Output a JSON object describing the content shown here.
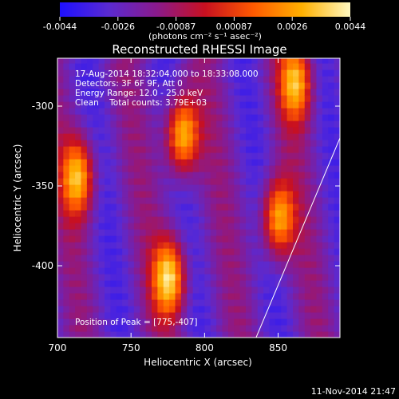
{
  "chart_data": {
    "type": "heatmap",
    "title": "Reconstructed RHESSI Image",
    "xlabel": "Heliocentric X (arcsec)",
    "ylabel": "Heliocentric Y (arcsec)",
    "xlim": [
      700,
      892
    ],
    "ylim": [
      -445,
      -270
    ],
    "x_ticks": [
      700,
      750,
      800,
      850
    ],
    "y_ticks": [
      -300,
      -350,
      -400
    ],
    "colorbar": {
      "ticks": [
        "-0.0044",
        "-0.0026",
        "-0.00087",
        "0.00087",
        "0.0026",
        "0.0044"
      ],
      "min": -0.0044,
      "max": 0.0044,
      "units_label": "(photons cm⁻² s⁻¹ asec⁻²)",
      "colors": [
        "#1e10ff",
        "#5a2ad2",
        "#8a1a8c",
        "#c81020",
        "#ff5a00",
        "#ffb000",
        "#fff8c0"
      ]
    },
    "annotations": [
      "17-Aug-2014 18:32:04.000 to 18:33:08.000",
      "Detectors: 3F 6F 9F, Att 0",
      "Energy Range: 12.0 - 25.0 keV",
      "Clean    Total counts: 3.79E+03"
    ],
    "peak_label": "Position of Peak = [775,-407]",
    "peak": [
      775,
      -407
    ],
    "timestamp": "11-Nov-2014 21:47",
    "bright_blobs": [
      {
        "x": 714,
        "y": -344,
        "level": 0.9
      },
      {
        "x": 785,
        "y": -318,
        "level": 1.0
      },
      {
        "x": 776,
        "y": -407,
        "level": 1.0
      },
      {
        "x": 850,
        "y": -370,
        "level": 0.9
      },
      {
        "x": 862,
        "y": -285,
        "level": 0.85
      }
    ],
    "limb_line": [
      [
        835,
        -445
      ],
      [
        892,
        -320
      ]
    ]
  }
}
